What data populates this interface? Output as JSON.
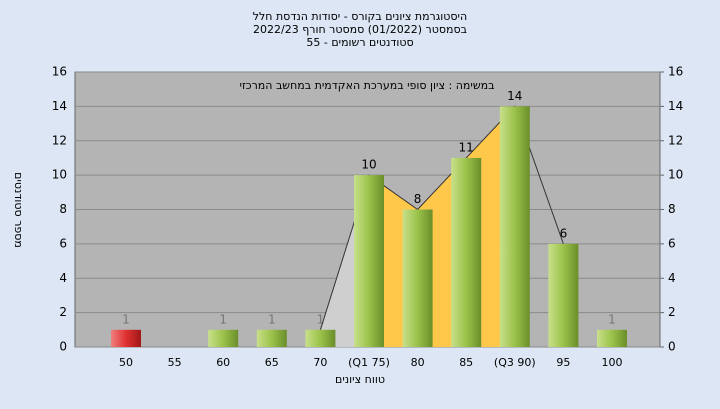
{
  "chart_data": {
    "type": "bar",
    "title": [
      "היסטוגרמת ציונים בקורס - יסודות הנדסת חלל",
      "בסמסטר  (01/2022)  סמסטר חורף 2022/23",
      "55 - סטודנטים רשומים"
    ],
    "annotation": "במשימה : ציון סופי במערכת האקדמית במחשב המרכזי",
    "x_label": "טווח ציונים",
    "y_label": "מספר סטודנטים",
    "categories": [
      "50",
      "55",
      "60",
      "65",
      "70",
      "(Q1 75)",
      "80",
      "85",
      "(Q3 90)",
      "95",
      "100"
    ],
    "values": [
      1,
      0,
      1,
      1,
      1,
      10,
      8,
      11,
      14,
      6,
      1
    ],
    "colors": [
      "#e03030",
      "#9bc24a",
      "#9bc24a",
      "#9bc24a",
      "#9bc24a",
      "#9bc24a",
      "#9bc24a",
      "#9bc24a",
      "#9bc24a",
      "#9bc24a",
      "#9bc24a"
    ],
    "ylim": [
      0,
      16
    ],
    "yticks": [
      0,
      2,
      4,
      6,
      8,
      10,
      12,
      14,
      16
    ],
    "y2lim": [
      0,
      16
    ],
    "y2ticks": [
      0,
      2,
      4,
      6,
      8,
      10,
      12,
      14,
      16
    ],
    "grid": true
  }
}
